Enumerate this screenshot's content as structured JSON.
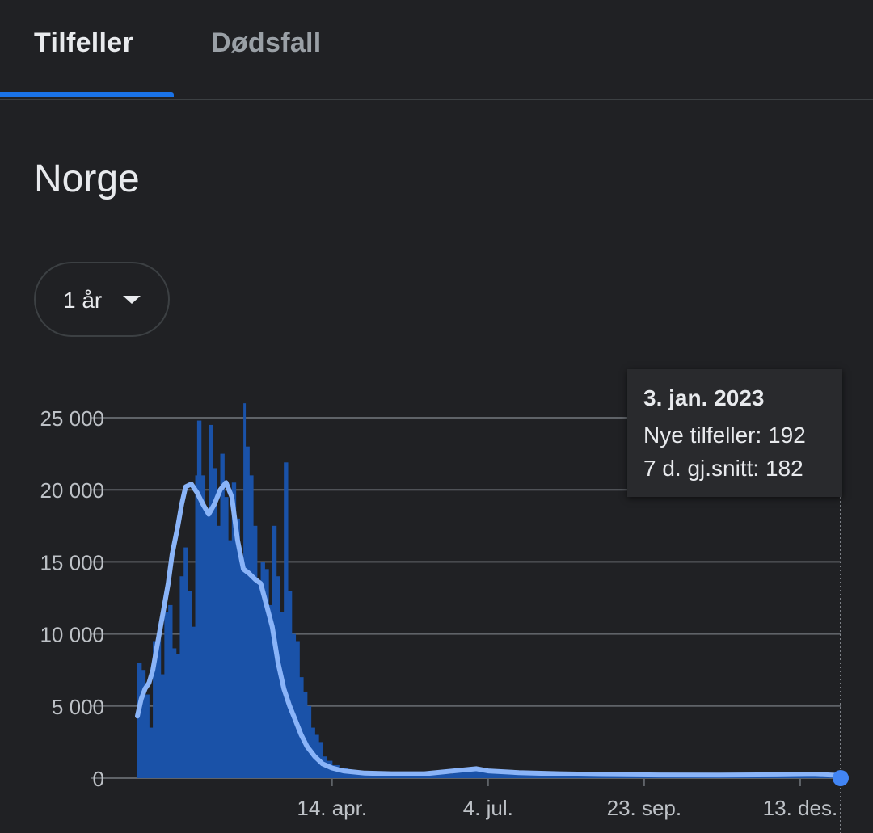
{
  "tabs": [
    {
      "label": "Tilfeller",
      "active": true
    },
    {
      "label": "Dødsfall",
      "active": false
    }
  ],
  "region_title": "Norge",
  "range_select": {
    "value": "1 år",
    "icon": "dropdown-caret-icon"
  },
  "tooltip": {
    "date": "3. jan. 2023",
    "new_cases_label": "Nye tilfeller:",
    "new_cases": 192,
    "avg_label": "7 d. gj.snitt:",
    "avg": 182
  },
  "colors": {
    "bars": "#1a52a8",
    "average_line": "#8ab4f8",
    "marker": "#4285f4",
    "grid": "#5f6368",
    "active_tab": "#1a73e8"
  },
  "chart_data": {
    "type": "bar",
    "ylim": [
      0,
      25000
    ],
    "grid": true,
    "y_ticks": [
      {
        "value": 0,
        "label": "0"
      },
      {
        "value": 5000,
        "label": "5 000"
      },
      {
        "value": 10000,
        "label": "10 000"
      },
      {
        "value": 15000,
        "label": "15 000"
      },
      {
        "value": 20000,
        "label": "20 000"
      },
      {
        "value": 25000,
        "label": "25 000"
      }
    ],
    "x_range": [
      "2022-01-03",
      "2023-01-03"
    ],
    "x_ticks": [
      {
        "date": "2022-04-14",
        "label": "14. apr."
      },
      {
        "date": "2022-07-04",
        "label": "4. jul."
      },
      {
        "date": "2022-09-23",
        "label": "23. sep."
      },
      {
        "date": "2022-12-13",
        "label": "13. des."
      }
    ],
    "series": [
      {
        "type": "bar",
        "points": [
          [
            "2022-01-03",
            8000
          ],
          [
            "2022-01-05",
            7500
          ],
          [
            "2022-01-07",
            5800
          ],
          [
            "2022-01-09",
            3500
          ],
          [
            "2022-01-11",
            9500
          ],
          [
            "2022-01-13",
            10000
          ],
          [
            "2022-01-15",
            7200
          ],
          [
            "2022-01-17",
            11500
          ],
          [
            "2022-01-19",
            12000
          ],
          [
            "2022-01-21",
            9000
          ],
          [
            "2022-01-23",
            8600
          ],
          [
            "2022-01-25",
            14000
          ],
          [
            "2022-01-27",
            16000
          ],
          [
            "2022-01-29",
            13000
          ],
          [
            "2022-01-31",
            10500
          ],
          [
            "2022-02-02",
            21000
          ],
          [
            "2022-02-03",
            24800
          ],
          [
            "2022-02-05",
            21000
          ],
          [
            "2022-02-07",
            18500
          ],
          [
            "2022-02-09",
            24500
          ],
          [
            "2022-02-11",
            21500
          ],
          [
            "2022-02-13",
            17500
          ],
          [
            "2022-02-15",
            22500
          ],
          [
            "2022-02-17",
            19500
          ],
          [
            "2022-02-19",
            16500
          ],
          [
            "2022-02-21",
            20500
          ],
          [
            "2022-02-23",
            18000
          ],
          [
            "2022-02-25",
            15000
          ],
          [
            "2022-02-27",
            26000
          ],
          [
            "2022-02-28",
            23000
          ],
          [
            "2022-03-02",
            21000
          ],
          [
            "2022-03-04",
            17500
          ],
          [
            "2022-03-06",
            13500
          ],
          [
            "2022-03-08",
            15000
          ],
          [
            "2022-03-10",
            14500
          ],
          [
            "2022-03-12",
            12000
          ],
          [
            "2022-03-14",
            17500
          ],
          [
            "2022-03-16",
            14000
          ],
          [
            "2022-03-18",
            11500
          ],
          [
            "2022-03-20",
            21900
          ],
          [
            "2022-03-22",
            13000
          ],
          [
            "2022-03-24",
            10000
          ],
          [
            "2022-03-26",
            9500
          ],
          [
            "2022-03-28",
            7000
          ],
          [
            "2022-03-30",
            6000
          ],
          [
            "2022-04-01",
            5000
          ],
          [
            "2022-04-03",
            3500
          ],
          [
            "2022-04-05",
            3000
          ],
          [
            "2022-04-07",
            2500
          ],
          [
            "2022-04-09",
            1500
          ],
          [
            "2022-04-11",
            1200
          ],
          [
            "2022-04-14",
            900
          ],
          [
            "2022-04-18",
            700
          ],
          [
            "2022-04-22",
            500
          ],
          [
            "2022-04-26",
            400
          ],
          [
            "2022-05-01",
            300
          ],
          [
            "2022-05-10",
            250
          ],
          [
            "2022-05-20",
            250
          ],
          [
            "2022-06-01",
            300
          ],
          [
            "2022-06-15",
            450
          ],
          [
            "2022-06-25",
            700
          ],
          [
            "2022-07-04",
            500
          ],
          [
            "2022-07-20",
            400
          ],
          [
            "2022-08-10",
            300
          ],
          [
            "2022-09-01",
            250
          ],
          [
            "2022-10-01",
            200
          ],
          [
            "2022-11-01",
            200
          ],
          [
            "2022-12-01",
            220
          ],
          [
            "2022-12-20",
            260
          ],
          [
            "2023-01-03",
            192
          ]
        ]
      },
      {
        "type": "line",
        "label": "7 d. gj.snitt",
        "points": [
          [
            "2022-01-03",
            4300
          ],
          [
            "2022-01-05",
            5500
          ],
          [
            "2022-01-07",
            6200
          ],
          [
            "2022-01-09",
            6600
          ],
          [
            "2022-01-11",
            7500
          ],
          [
            "2022-01-13",
            9000
          ],
          [
            "2022-01-15",
            10500
          ],
          [
            "2022-01-17",
            12000
          ],
          [
            "2022-01-19",
            13500
          ],
          [
            "2022-01-21",
            15500
          ],
          [
            "2022-01-24",
            17500
          ],
          [
            "2022-01-26",
            19000
          ],
          [
            "2022-01-28",
            20200
          ],
          [
            "2022-01-31",
            20400
          ],
          [
            "2022-02-03",
            19800
          ],
          [
            "2022-02-06",
            19000
          ],
          [
            "2022-02-09",
            18300
          ],
          [
            "2022-02-12",
            19000
          ],
          [
            "2022-02-15",
            20000
          ],
          [
            "2022-02-18",
            20500
          ],
          [
            "2022-02-21",
            19500
          ],
          [
            "2022-02-24",
            16500
          ],
          [
            "2022-02-27",
            14500
          ],
          [
            "2022-03-02",
            14200
          ],
          [
            "2022-03-05",
            13800
          ],
          [
            "2022-03-08",
            13500
          ],
          [
            "2022-03-11",
            12000
          ],
          [
            "2022-03-14",
            10500
          ],
          [
            "2022-03-17",
            8000
          ],
          [
            "2022-03-20",
            6200
          ],
          [
            "2022-03-23",
            5000
          ],
          [
            "2022-03-26",
            4000
          ],
          [
            "2022-03-29",
            3000
          ],
          [
            "2022-04-01",
            2200
          ],
          [
            "2022-04-05",
            1500
          ],
          [
            "2022-04-09",
            1000
          ],
          [
            "2022-04-14",
            700
          ],
          [
            "2022-04-20",
            500
          ],
          [
            "2022-05-01",
            350
          ],
          [
            "2022-05-15",
            300
          ],
          [
            "2022-06-01",
            300
          ],
          [
            "2022-06-20",
            550
          ],
          [
            "2022-06-28",
            650
          ],
          [
            "2022-07-04",
            500
          ],
          [
            "2022-07-20",
            380
          ],
          [
            "2022-08-10",
            300
          ],
          [
            "2022-09-01",
            250
          ],
          [
            "2022-10-01",
            220
          ],
          [
            "2022-11-01",
            210
          ],
          [
            "2022-12-01",
            230
          ],
          [
            "2022-12-20",
            270
          ],
          [
            "2023-01-03",
            182
          ]
        ]
      }
    ]
  }
}
